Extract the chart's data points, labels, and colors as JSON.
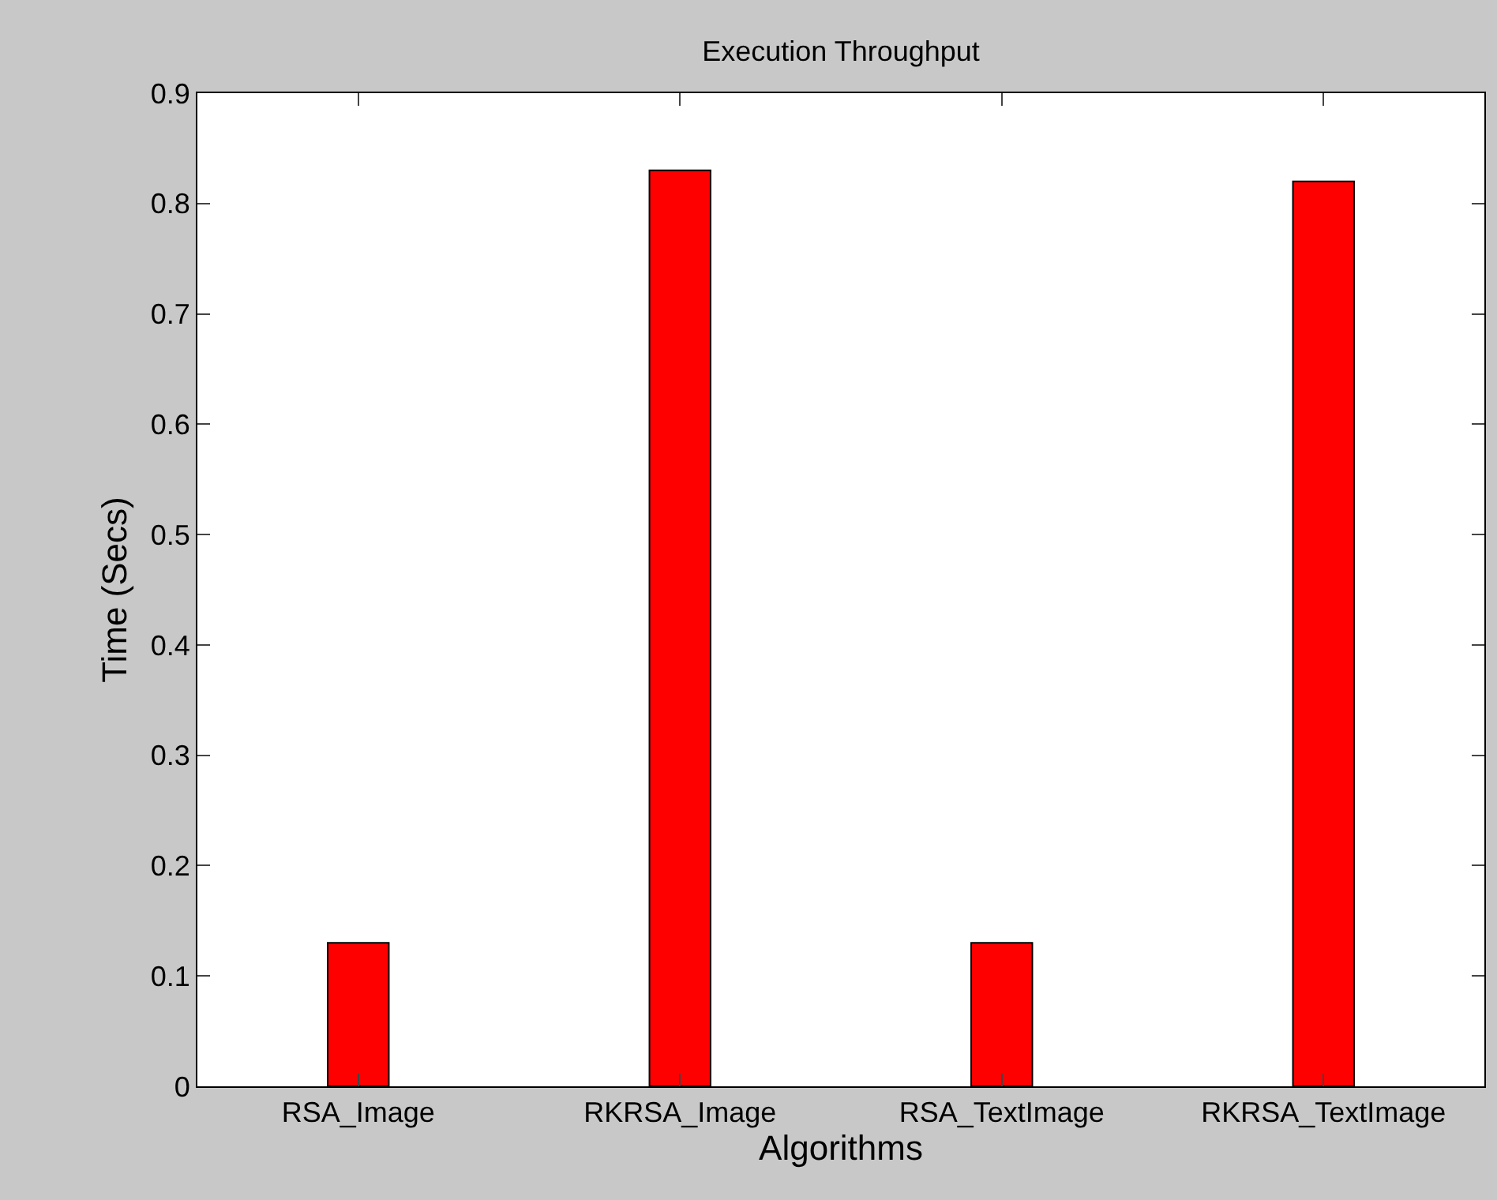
{
  "chart_data": {
    "type": "bar",
    "title": "Execution Throughput",
    "xlabel": "Algorithms",
    "ylabel": "Time (Secs)",
    "categories": [
      "RSA_Image",
      "RKRSA_Image",
      "RSA_TextImage",
      "RKRSA_TextImage"
    ],
    "values": [
      0.13,
      0.83,
      0.13,
      0.82
    ],
    "color": "#ff0000",
    "ylim": [
      0,
      0.9
    ],
    "yticks": [
      0,
      0.1,
      0.2,
      0.3,
      0.4,
      0.5,
      0.6,
      0.7,
      0.8,
      0.9
    ]
  }
}
